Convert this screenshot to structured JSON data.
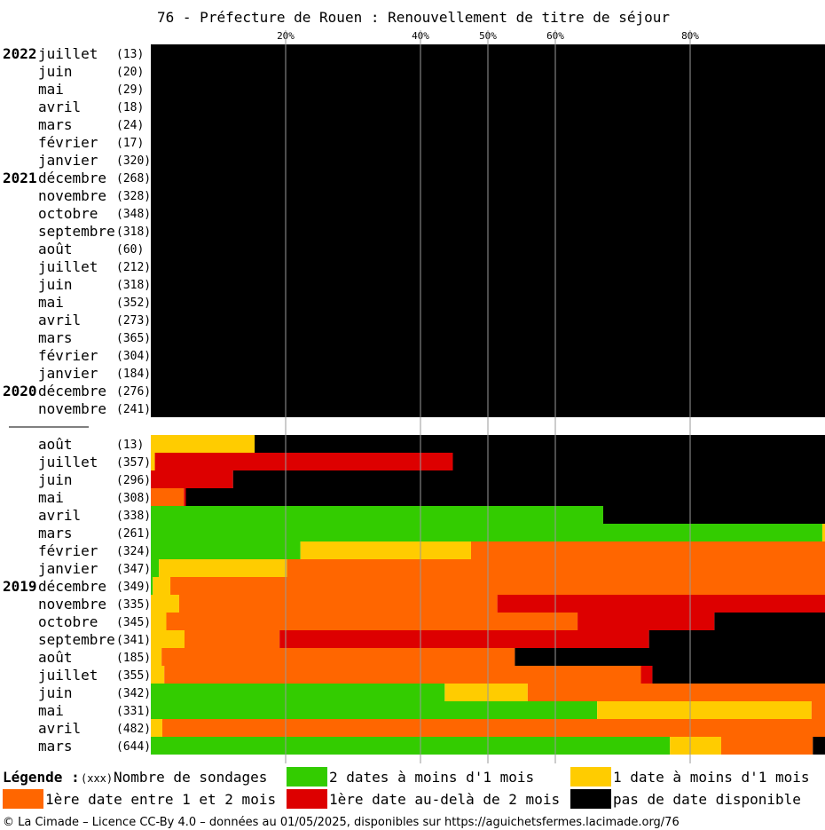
{
  "chart_data": {
    "type": "bar",
    "orientation": "horizontal",
    "stacked": true,
    "title": "76 - Préfecture de Rouen : Renouvellement de titre de séjour",
    "xlim": [
      0,
      100
    ],
    "x_ticks": [
      {
        "value": 20,
        "label": "20%"
      },
      {
        "value": 40,
        "label": "40%"
      },
      {
        "value": 50,
        "label": "50%"
      },
      {
        "value": 60,
        "label": "60%"
      },
      {
        "value": 80,
        "label": "80%"
      }
    ],
    "categories_order": [
      "green",
      "yellow",
      "orange",
      "red",
      "black"
    ],
    "colors": {
      "green": "#33cc00",
      "yellow": "#ffcc00",
      "orange": "#ff6600",
      "red": "#dd0000",
      "black": "#000000"
    },
    "rows": [
      {
        "year": "2022",
        "month": "juillet",
        "count": "(13)",
        "values": [
          0,
          0,
          0,
          0,
          100
        ]
      },
      {
        "year": "",
        "month": "juin",
        "count": "(20)",
        "values": [
          0,
          0,
          0,
          0,
          100
        ]
      },
      {
        "year": "",
        "month": "mai",
        "count": "(29)",
        "values": [
          0,
          0,
          0,
          0,
          100
        ]
      },
      {
        "year": "",
        "month": "avril",
        "count": "(18)",
        "values": [
          0,
          0,
          0,
          0,
          100
        ]
      },
      {
        "year": "",
        "month": "mars",
        "count": "(24)",
        "values": [
          0,
          0,
          0,
          0,
          100
        ]
      },
      {
        "year": "",
        "month": "février",
        "count": "(17)",
        "values": [
          0,
          0,
          0,
          0,
          100
        ]
      },
      {
        "year": "",
        "month": "janvier",
        "count": "(320)",
        "values": [
          0,
          0,
          0,
          0,
          100
        ]
      },
      {
        "year": "2021",
        "month": "décembre",
        "count": "(268)",
        "values": [
          0,
          0,
          0,
          0,
          100
        ]
      },
      {
        "year": "",
        "month": "novembre",
        "count": "(328)",
        "values": [
          0,
          0,
          0,
          0,
          100
        ]
      },
      {
        "year": "",
        "month": "octobre",
        "count": "(348)",
        "values": [
          0,
          0,
          0,
          0,
          100
        ]
      },
      {
        "year": "",
        "month": "septembre",
        "count": "(318)",
        "values": [
          0,
          0,
          0,
          0,
          100
        ]
      },
      {
        "year": "",
        "month": "août",
        "count": "(60)",
        "values": [
          0,
          0,
          0,
          0,
          100
        ]
      },
      {
        "year": "",
        "month": "juillet",
        "count": "(212)",
        "values": [
          0,
          0,
          0,
          0,
          100
        ]
      },
      {
        "year": "",
        "month": "juin",
        "count": "(318)",
        "values": [
          0,
          0,
          0,
          0,
          100
        ]
      },
      {
        "year": "",
        "month": "mai",
        "count": "(352)",
        "values": [
          0,
          0,
          0,
          0,
          100
        ]
      },
      {
        "year": "",
        "month": "avril",
        "count": "(273)",
        "values": [
          0,
          0,
          0,
          0,
          100
        ]
      },
      {
        "year": "",
        "month": "mars",
        "count": "(365)",
        "values": [
          0,
          0,
          0,
          0,
          100
        ]
      },
      {
        "year": "",
        "month": "février",
        "count": "(304)",
        "values": [
          0,
          0,
          0,
          0,
          100
        ]
      },
      {
        "year": "",
        "month": "janvier",
        "count": "(184)",
        "values": [
          0,
          0,
          0,
          0,
          100
        ]
      },
      {
        "year": "2020",
        "month": "décembre",
        "count": "(276)",
        "values": [
          0,
          0,
          0,
          0,
          100
        ]
      },
      {
        "year": "",
        "month": "novembre",
        "count": "(241)",
        "values": [
          0,
          0,
          0,
          0,
          100
        ]
      },
      {
        "gap": true
      },
      {
        "year": "",
        "month": "août",
        "count": "(13)",
        "values": [
          0,
          15.4,
          0,
          0,
          84.6
        ]
      },
      {
        "year": "",
        "month": "juillet",
        "count": "(357)",
        "values": [
          0,
          0.6,
          0,
          44.2,
          55.2
        ]
      },
      {
        "year": "",
        "month": "juin",
        "count": "(296)",
        "values": [
          0,
          0,
          0,
          12.2,
          87.8
        ]
      },
      {
        "year": "",
        "month": "mai",
        "count": "(308)",
        "values": [
          0,
          0,
          4.9,
          0.3,
          94.8
        ]
      },
      {
        "year": "",
        "month": "avril",
        "count": "(338)",
        "values": [
          67.1,
          0,
          0,
          0,
          32.9
        ]
      },
      {
        "year": "",
        "month": "mars",
        "count": "(261)",
        "values": [
          99.6,
          0.4,
          0,
          0,
          0
        ]
      },
      {
        "year": "",
        "month": "février",
        "count": "(324)",
        "values": [
          22.2,
          25.3,
          52.5,
          0,
          0
        ]
      },
      {
        "year": "",
        "month": "janvier",
        "count": "(347)",
        "values": [
          1.2,
          19.0,
          79.8,
          0,
          0
        ]
      },
      {
        "year": "2019",
        "month": "décembre",
        "count": "(349)",
        "values": [
          0.3,
          2.6,
          97.1,
          0,
          0
        ]
      },
      {
        "year": "",
        "month": "novembre",
        "count": "(335)",
        "values": [
          0,
          4.2,
          47.2,
          48.6,
          0
        ]
      },
      {
        "year": "",
        "month": "octobre",
        "count": "(345)",
        "values": [
          0,
          2.3,
          61.0,
          20.3,
          16.4
        ]
      },
      {
        "year": "",
        "month": "septembre",
        "count": "(341)",
        "values": [
          0,
          5.0,
          14.1,
          54.8,
          26.1
        ]
      },
      {
        "year": "",
        "month": "août",
        "count": "(185)",
        "values": [
          0,
          1.6,
          52.4,
          0,
          46.0
        ]
      },
      {
        "year": "",
        "month": "juillet",
        "count": "(355)",
        "values": [
          0,
          2.0,
          70.7,
          1.7,
          25.6
        ]
      },
      {
        "year": "",
        "month": "juin",
        "count": "(342)",
        "values": [
          43.6,
          12.3,
          44.1,
          0,
          0
        ]
      },
      {
        "year": "",
        "month": "mai",
        "count": "(331)",
        "values": [
          66.2,
          31.8,
          2.0,
          0,
          0
        ]
      },
      {
        "year": "",
        "month": "avril",
        "count": "(482)",
        "values": [
          0,
          1.7,
          98.3,
          0,
          0
        ]
      },
      {
        "year": "",
        "month": "mars",
        "count": "(644)",
        "values": [
          77.0,
          7.6,
          13.6,
          0,
          1.8
        ]
      }
    ]
  },
  "legend": {
    "title": "Légende :",
    "count_marker": "(xxx)",
    "count_label": "Nombre de sondages",
    "items": [
      {
        "key": "green",
        "label": "2 dates à moins d'1 mois"
      },
      {
        "key": "yellow",
        "label": "1 date à moins d'1 mois"
      },
      {
        "key": "orange",
        "label": "1ère date entre 1 et 2 mois"
      },
      {
        "key": "red",
        "label": "1ère date au-delà de 2 mois"
      },
      {
        "key": "black",
        "label": "pas de date disponible"
      }
    ]
  },
  "footer": "© La Cimade – Licence CC-By 4.0 – données au 01/05/2025, disponibles sur https://aguichetsfermes.lacimade.org/76"
}
